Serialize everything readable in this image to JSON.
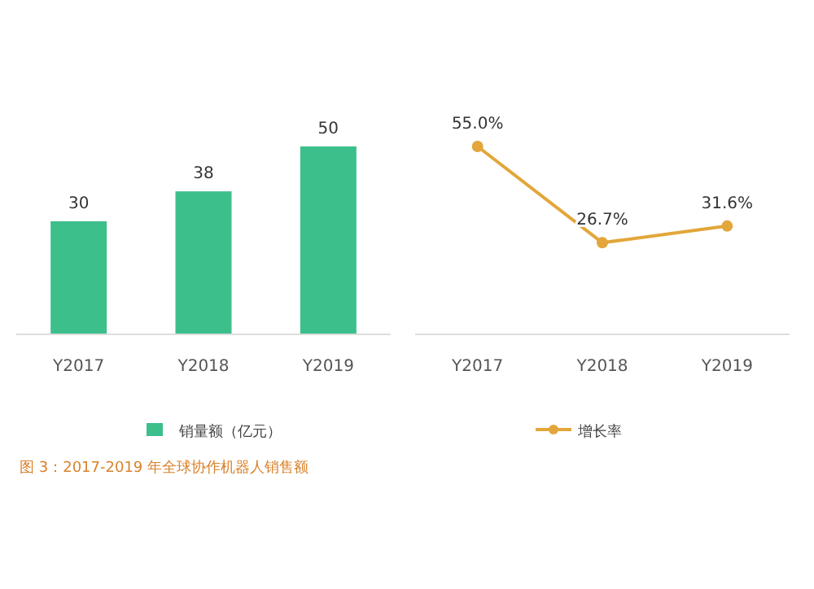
{
  "chart_data": [
    {
      "type": "bar",
      "categories": [
        "Y2017",
        "Y2018",
        "Y2019"
      ],
      "series": [
        {
          "name": "销量额（亿元）",
          "color": "#3dbf8c",
          "values": [
            30,
            38,
            50
          ]
        }
      ],
      "data_labels": true,
      "legend": "bottom",
      "annotations": [
        "图 3：2017-2019 年全球协作机器人销售额"
      ]
    },
    {
      "type": "line",
      "categories": [
        "Y2017",
        "Y2018",
        "Y2019"
      ],
      "series": [
        {
          "name": "增长率",
          "color": "#e2a63a",
          "values": [
            55.0,
            26.7,
            31.6
          ],
          "value_labels": [
            "55.0%",
            "26.7%",
            "31.6%"
          ]
        }
      ],
      "marker": "circle",
      "legend": "bottom"
    }
  ]
}
